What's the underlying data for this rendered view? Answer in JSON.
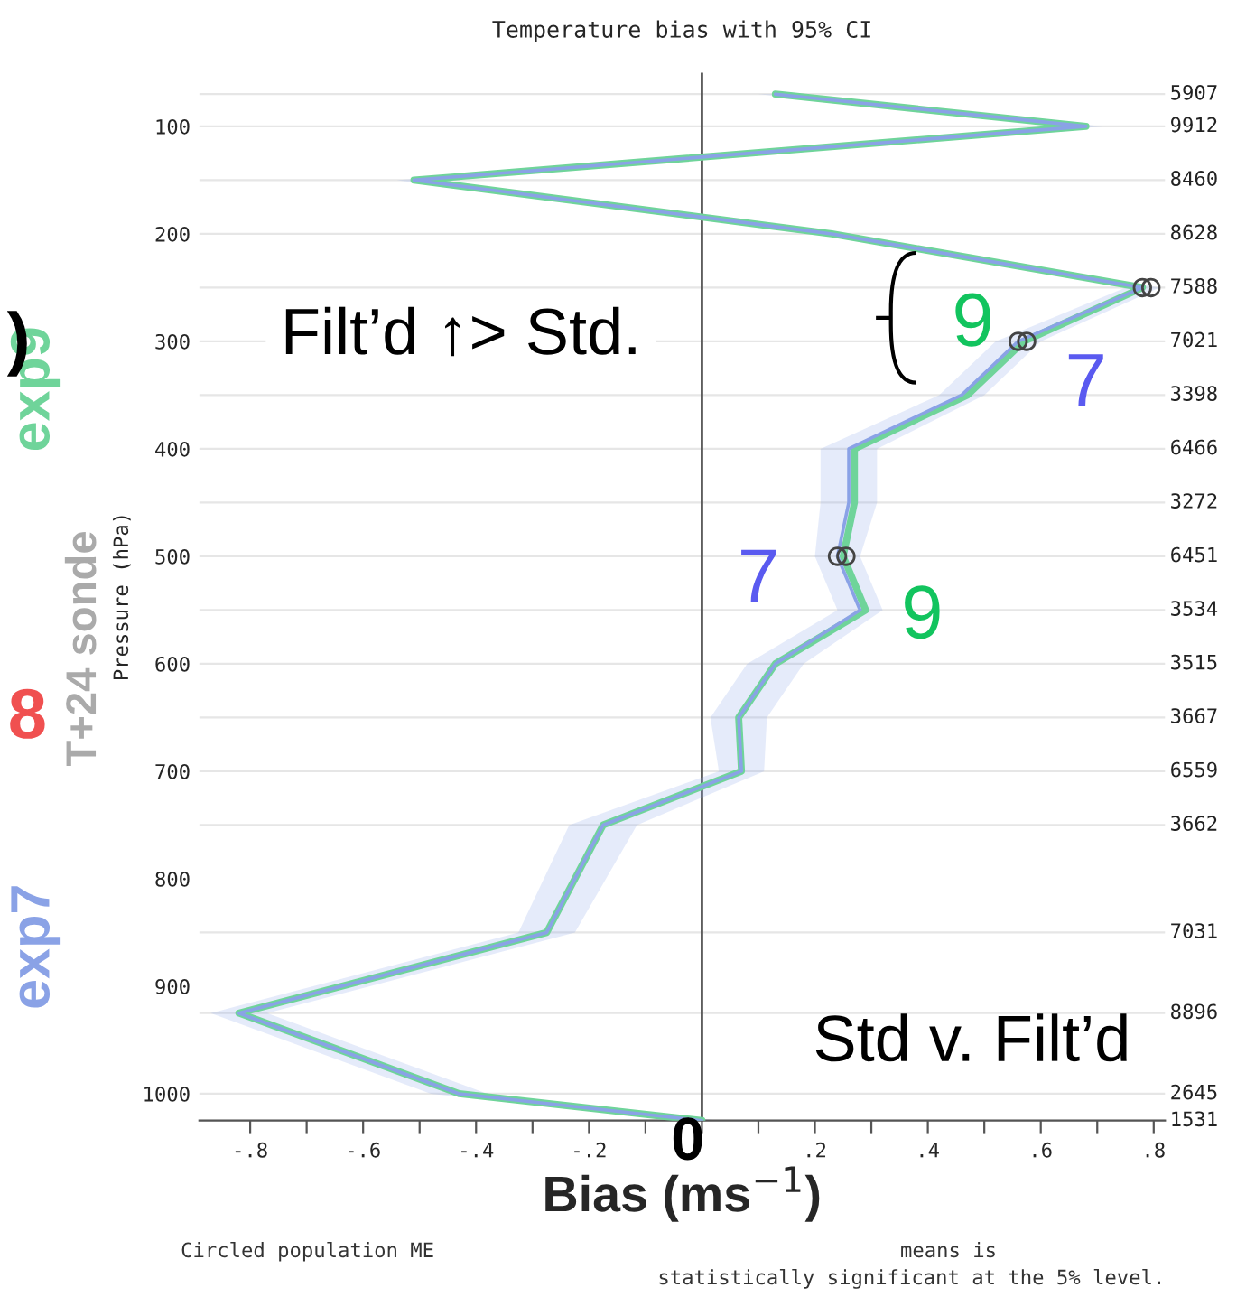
{
  "chart_data": {
    "type": "line",
    "orientation": "horizontal",
    "title": "Temperature bias with 95% CI",
    "xlabel": "Bias (ms$^{−1}$)",
    "ylabel": "Pressure (hPa)",
    "xlim": [
      -0.89,
      0.82
    ],
    "ylim": [
      1025,
      50
    ],
    "xticks": [
      {
        "value": -0.8,
        "label": "-.8"
      },
      {
        "value": -0.7,
        "label": null
      },
      {
        "value": -0.6,
        "label": "-.6"
      },
      {
        "value": -0.5,
        "label": null
      },
      {
        "value": -0.4,
        "label": "-.4"
      },
      {
        "value": -0.3,
        "label": null
      },
      {
        "value": -0.2,
        "label": "-.2"
      },
      {
        "value": -0.1,
        "label": null
      },
      {
        "value": 0,
        "label": null
      },
      {
        "value": 0.1,
        "label": null
      },
      {
        "value": 0.2,
        "label": ".2"
      },
      {
        "value": 0.3,
        "label": null
      },
      {
        "value": 0.4,
        "label": ".4"
      },
      {
        "value": 0.5,
        "label": null
      },
      {
        "value": 0.6,
        "label": ".6"
      },
      {
        "value": 0.7,
        "label": null
      },
      {
        "value": 0.8,
        "label": ".8"
      }
    ],
    "yticks": [
      100,
      200,
      300,
      400,
      500,
      600,
      700,
      800,
      900,
      1000
    ],
    "grid": "y",
    "line_style": "solid",
    "marker": "none",
    "ref_lines": [
      {
        "axis": "x",
        "value": 0,
        "color": "#555555"
      }
    ],
    "series": [
      {
        "name": "exp9",
        "color": "#6fd49a",
        "x": [
          70,
          100,
          150,
          200,
          250,
          300,
          350,
          400,
          450,
          500,
          550,
          600,
          650,
          700,
          750,
          850,
          925,
          1000,
          1025
        ],
        "values": [
          0.13,
          0.68,
          -0.51,
          0.23,
          0.78,
          0.57,
          0.47,
          0.27,
          0.27,
          0.25,
          0.29,
          0.13,
          0.065,
          0.07,
          -0.175,
          -0.275,
          -0.82,
          -0.43,
          0.0
        ]
      },
      {
        "name": "exp7",
        "color": "#8aa2e6",
        "x": [
          70,
          100,
          150,
          200,
          250,
          300,
          350,
          400,
          450,
          500,
          550,
          600,
          650,
          700,
          750,
          850,
          925,
          1000,
          1025
        ],
        "values": [
          0.13,
          0.68,
          -0.51,
          0.23,
          0.78,
          0.56,
          0.46,
          0.26,
          0.26,
          0.24,
          0.28,
          0.13,
          0.065,
          0.07,
          -0.175,
          -0.275,
          -0.82,
          -0.43,
          0.0
        ],
        "lower": [
          0.1,
          0.65,
          -0.54,
          0.2,
          0.75,
          0.52,
          0.42,
          0.21,
          0.21,
          0.2,
          0.24,
          0.08,
          0.015,
          0.03,
          -0.235,
          -0.325,
          -0.87,
          -0.48,
          -0.03
        ],
        "upper": [
          0.16,
          0.71,
          -0.48,
          0.26,
          0.81,
          0.6,
          0.5,
          0.31,
          0.31,
          0.28,
          0.32,
          0.18,
          0.115,
          0.11,
          -0.115,
          -0.225,
          -0.77,
          -0.38,
          0.03
        ]
      },
      {
        "type": "scatter",
        "marker": "circle",
        "color": "#444444",
        "x": [
          250,
          250,
          300,
          300,
          500,
          500
        ],
        "values": [
          0.78,
          0.795,
          0.56,
          0.575,
          0.24,
          0.255
        ]
      }
    ],
    "annotations": [
      "9",
      "7",
      "7",
      "9",
      "5907",
      "9912",
      "8460",
      "8628",
      "7588",
      "7021",
      "3398",
      "6466",
      "3272",
      "6451",
      "3534",
      "3515",
      "3667",
      "6559",
      "3662",
      "7031",
      "8896",
      "2645",
      "1531",
      "Filt’d ↑> Std.",
      "Std v. Filt’d",
      "0",
      "T+24 sonde",
      "8",
      ")",
      "Circled population ME",
      "means is",
      "statistically significant at the 5% level."
    ]
  }
}
